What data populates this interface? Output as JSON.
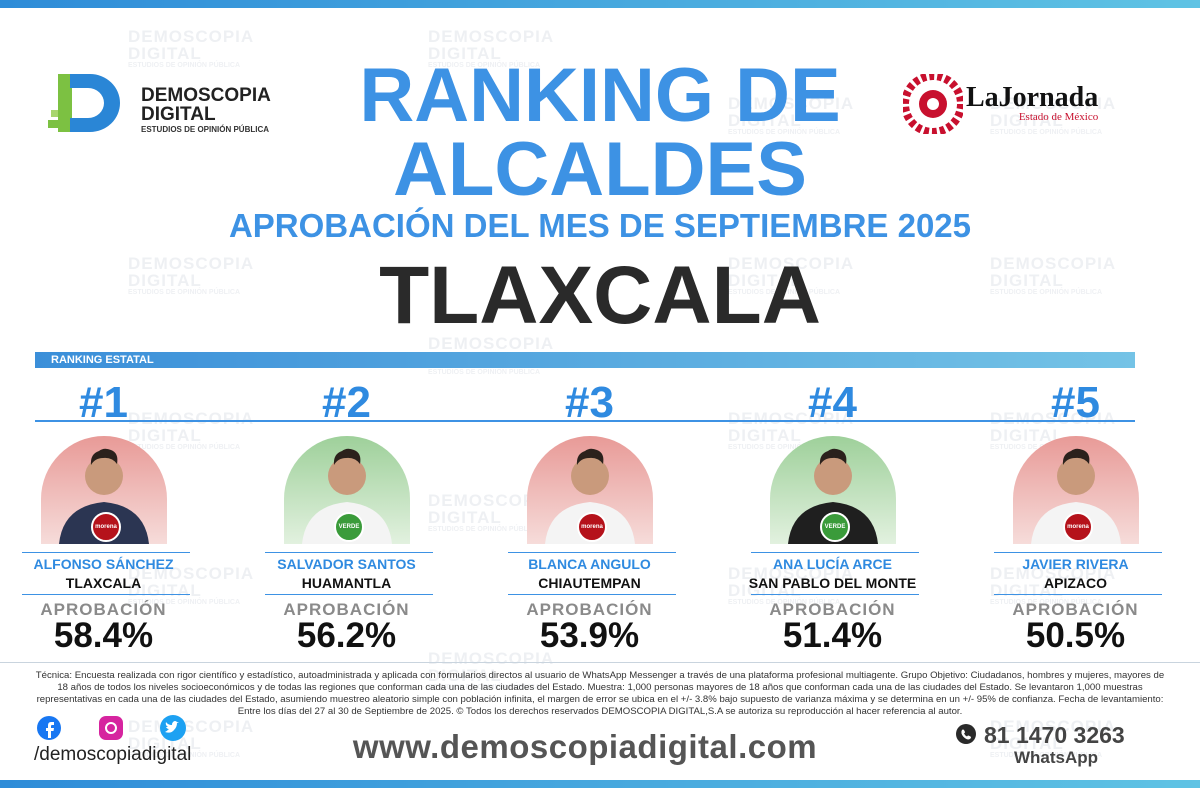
{
  "brand": {
    "name_line1": "DEMOSCOPIA",
    "name_line2": "DIGITAL",
    "tagline": "ESTUDIOS DE OPINIÓN PÚBLICA"
  },
  "partner": {
    "name": "LaJornada",
    "region": "Estado de México"
  },
  "header": {
    "title_line1": "RANKING DE",
    "title_line2": "ALCALDES",
    "subtitle": "APROBACIÓN DEL MES DE SEPTIEMBRE 2025",
    "state": "TLAXCALA"
  },
  "section_label": "RANKING ESTATAL",
  "candidates": [
    {
      "rank": "#1",
      "name": "ALFONSO SÁNCHEZ",
      "municipality": "TLAXCALA",
      "party": "morena",
      "approval_label": "APROBACIÓN",
      "approval": "58.4%"
    },
    {
      "rank": "#2",
      "name": "SALVADOR SANTOS",
      "municipality": "HUAMANTLA",
      "party": "VERDE",
      "approval_label": "APROBACIÓN",
      "approval": "56.2%"
    },
    {
      "rank": "#3",
      "name": "BLANCA ANGULO",
      "municipality": "CHIAUTEMPAN",
      "party": "morena",
      "approval_label": "APROBACIÓN",
      "approval": "53.9%"
    },
    {
      "rank": "#4",
      "name": "ANA LUCÍA ARCE",
      "municipality": "SAN PABLO DEL MONTE",
      "party": "VERDE",
      "approval_label": "APROBACIÓN",
      "approval": "51.4%"
    },
    {
      "rank": "#5",
      "name": "JAVIER RIVERA",
      "municipality": "APIZACO",
      "party": "morena",
      "approval_label": "APROBACIÓN",
      "approval": "50.5%"
    }
  ],
  "methodology": "Técnica: Encuesta realizada con rigor científico y estadístico, autoadministrada y aplicada con formularios directos al usuario de WhatsApp Messenger a través de una plataforma profesional multiagente. Grupo Objetivo: Ciudadanos, hombres y mujeres, mayores de 18 años de todos los niveles socioeconómicos y de todas las regiones que conforman cada una de las ciudades del Estado. Muestra: 1,000 personas mayores de 18 años que conforman cada una de las ciudades del Estado. Se levantaron 1,000 muestras representativas en cada una de las ciudades del Estado, asumiendo muestreo aleatorio simple con población infinita, el margen de error se ubica en el +/- 3.8% bajo supuesto de varianza máxima y se determina en un +/- 95% de confianza. Fecha de levantamiento: Entre los días del 27 al 30 de Septiembre de 2025. © Todos los derechos reservados DEMOSCOPIA DIGITAL,S.A se autoriza su reproducción al hacer referencia al autor.",
  "footer": {
    "social_handle": "/demoscopiadigital",
    "website": "www.demoscopiadigital.com",
    "phone": "81 1470 3263",
    "phone_app": "WhatsApp"
  }
}
